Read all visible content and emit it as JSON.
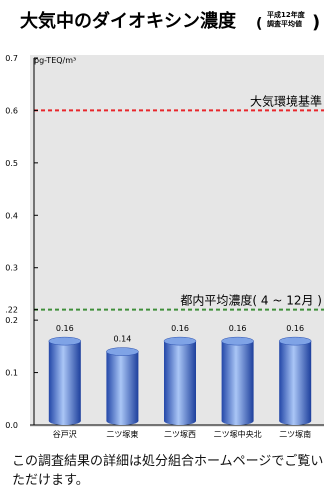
{
  "chart_data": {
    "type": "bar",
    "title": "大気中のダイオキシン濃度",
    "title_note_line1": "平成12年度",
    "title_note_line2": "調査平均値",
    "ylabel": "pg-TEQ/m³",
    "categories": [
      "谷戸沢",
      "二ツ塚東",
      "二ツ塚西",
      "二ツ塚中央北",
      "二ツ塚南"
    ],
    "values": [
      0.16,
      0.14,
      0.16,
      0.16,
      0.16
    ],
    "value_labels": [
      "0.16",
      "0.14",
      "0.16",
      "0.16",
      "0.16"
    ],
    "ylim": [
      0,
      0.7
    ],
    "yticks": [
      {
        "value": 0,
        "label": "0.0"
      },
      {
        "value": 0.1,
        "label": "0.1"
      },
      {
        "value": 0.2,
        "label": "0.2"
      },
      {
        "value": 0.22,
        "label": ".22"
      },
      {
        "value": 0.3,
        "label": "0.3"
      },
      {
        "value": 0.4,
        "label": "0.4"
      },
      {
        "value": 0.5,
        "label": "0.5"
      },
      {
        "value": 0.6,
        "label": "0.6"
      },
      {
        "value": 0.7,
        "label": "0.7"
      }
    ],
    "reference_lines": [
      {
        "value": 0.6,
        "label": "大気環境基準",
        "color": "#e8262b"
      },
      {
        "value": 0.22,
        "label": "都内平均濃度( 4 ~ 12月 )",
        "color": "#3f8f3a"
      }
    ],
    "bar_color": "#3a66c4",
    "background_color": "#e6e6e6",
    "grid": false,
    "legend": "none"
  },
  "footer": {
    "note": "この調査結果の詳細は処分組合ホームページでご覧いただけます。"
  }
}
